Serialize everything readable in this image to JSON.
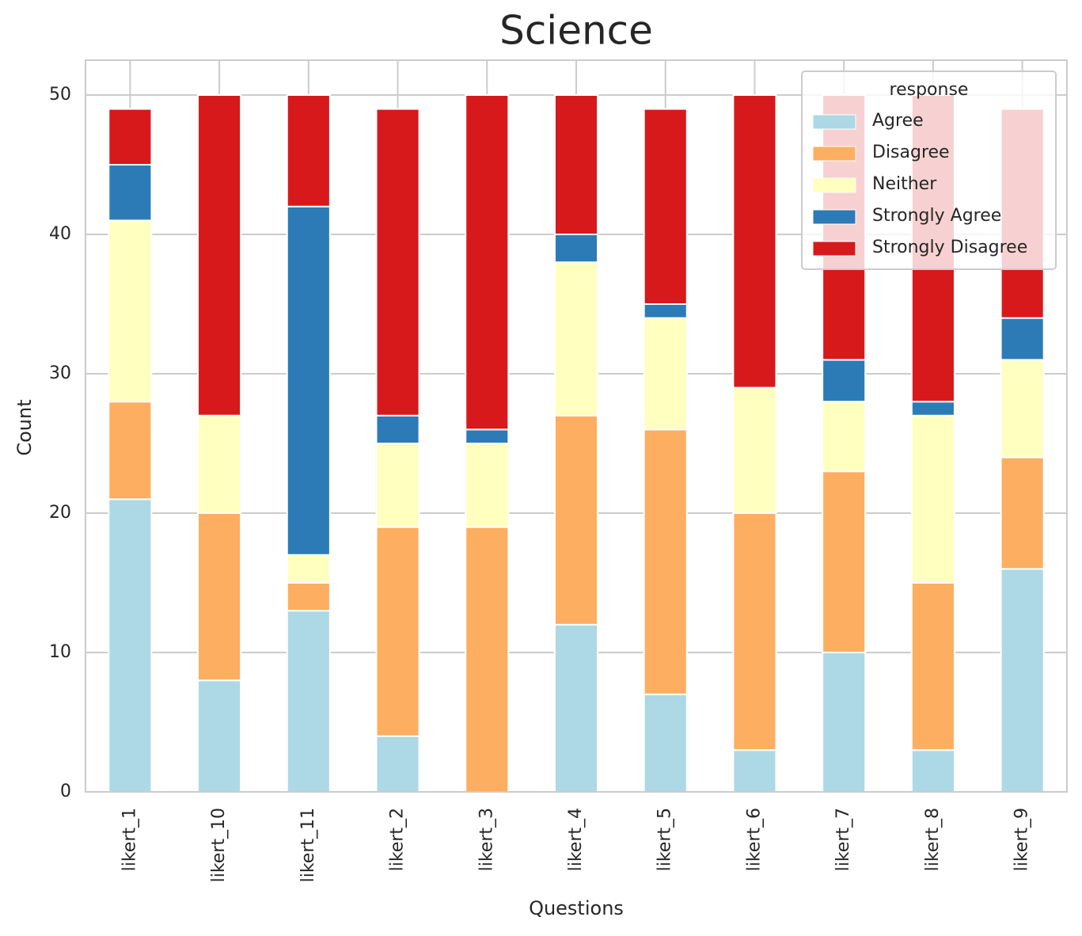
{
  "chart_data": {
    "type": "stacked_bar",
    "title": "Science",
    "x_label": "Questions",
    "y_label": "Count",
    "categories": [
      "likert_1",
      "likert_10",
      "likert_11",
      "likert_2",
      "likert_3",
      "likert_4",
      "likert_5",
      "likert_6",
      "likert_7",
      "likert_8",
      "likert_9"
    ],
    "series": [
      {
        "name": "Agree",
        "color": "#add8e6",
        "values": [
          21,
          8,
          13,
          4,
          0,
          12,
          7,
          3,
          10,
          3,
          16
        ]
      },
      {
        "name": "Disagree",
        "color": "#fdae61",
        "values": [
          7,
          12,
          2,
          15,
          19,
          15,
          19,
          17,
          13,
          12,
          8
        ]
      },
      {
        "name": "Neither",
        "color": "#ffffbf",
        "values": [
          13,
          7,
          2,
          6,
          6,
          11,
          8,
          9,
          5,
          12,
          7
        ]
      },
      {
        "name": "Strongly Agree",
        "color": "#2c7bb6",
        "values": [
          4,
          0,
          25,
          2,
          1,
          2,
          1,
          0,
          3,
          1,
          3
        ]
      },
      {
        "name": "Strongly Disagree",
        "color": "#d7191c",
        "values": [
          4,
          23,
          8,
          22,
          24,
          10,
          14,
          21,
          19,
          22,
          15
        ]
      }
    ],
    "legend_title": "response",
    "legend": "upper right",
    "ylim": [
      0,
      52.5
    ],
    "yticks": [
      0,
      10,
      20,
      30,
      40,
      50
    ],
    "grid": true
  }
}
